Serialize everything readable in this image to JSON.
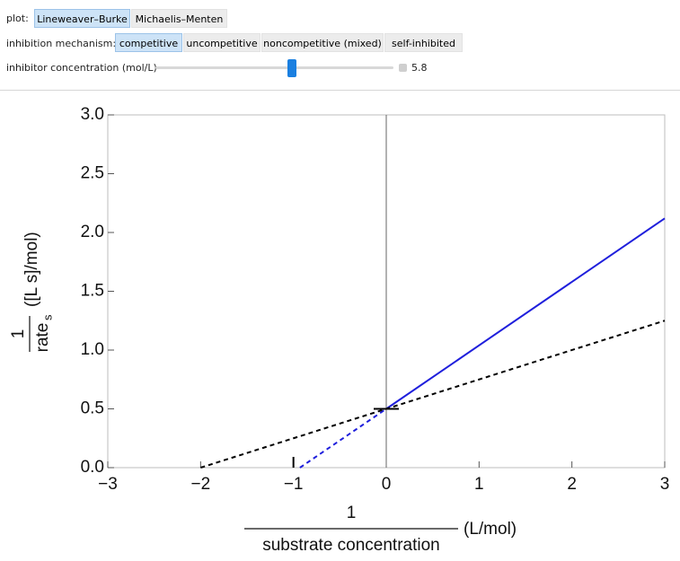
{
  "controls": {
    "plot": {
      "label": "plot:",
      "options": [
        "Lineweaver–Burke",
        "Michaelis–Menten"
      ]
    },
    "mechanism": {
      "label": "inhibition mechanism:",
      "options": [
        "competitive",
        "uncompetitive",
        "noncompetitive (mixed)",
        "self-inhibited"
      ]
    },
    "inhibitor": {
      "label": "inhibitor concentration (mol/L)",
      "value": "5.8"
    }
  },
  "chart_data": {
    "type": "line",
    "x_label": {
      "numerator": "1",
      "denominator": "substrate concentration",
      "unit": "(L/mol)"
    },
    "y_label": {
      "numerator": "1",
      "denominator": "rate",
      "subscript": "s",
      "unit": "([L s]/mol)"
    },
    "series": [
      {
        "color": "#1f1fdc",
        "dashed": false,
        "x": [
          0,
          3
        ],
        "values": [
          0.5,
          2.12
        ]
      },
      {
        "color": "#1f1fdc",
        "dashed": true,
        "x": [
          -0.93,
          0
        ],
        "values": [
          0,
          0.5
        ]
      },
      {
        "color": "#000000",
        "dashed": true,
        "x": [
          -2,
          3
        ],
        "values": [
          0,
          1.25
        ]
      }
    ],
    "markers": [
      {
        "x": 0,
        "y": 0.5,
        "orientation": "horizontal"
      },
      {
        "x": -1,
        "y": 0,
        "orientation": "vertical"
      }
    ],
    "xlim": [
      -3,
      3
    ],
    "xticks": [
      {
        "value": -3,
        "label": "−3"
      },
      {
        "value": -2,
        "label": "−2"
      },
      {
        "value": -1,
        "label": "−1"
      },
      0,
      1,
      2,
      3
    ],
    "ylim": [
      0,
      3
    ],
    "yticks": [
      {
        "value": 0,
        "label": "0.0"
      },
      0.5,
      {
        "value": 1,
        "label": "1.0"
      },
      1.5,
      {
        "value": 2,
        "label": "2.0"
      },
      2.5,
      {
        "value": 3,
        "label": "3.0"
      }
    ]
  }
}
